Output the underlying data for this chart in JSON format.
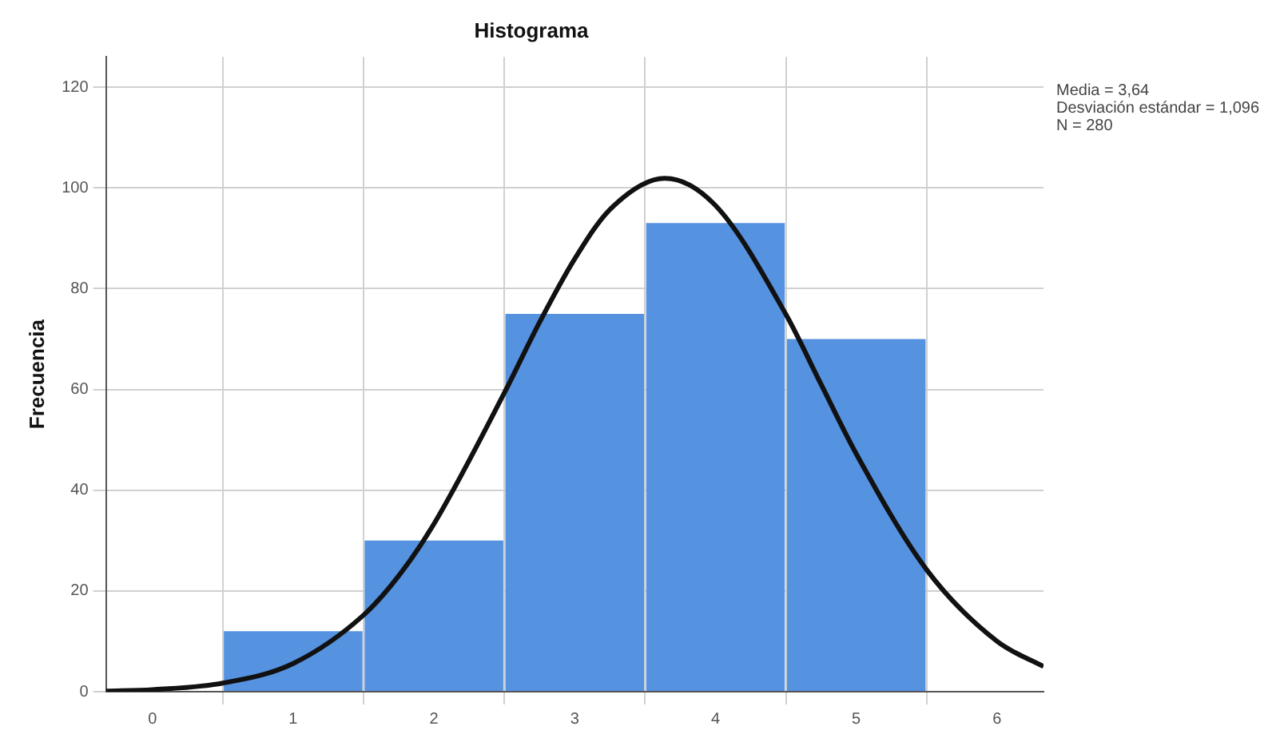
{
  "chart_data": {
    "type": "histogram",
    "title": "Histograma",
    "ylabel": "Frecuencia",
    "bins": [
      0.5,
      1.5,
      2.5,
      3.5,
      4.5,
      5.5
    ],
    "values": [
      12,
      30,
      75,
      93,
      70
    ],
    "color": "#5592e0",
    "series": [
      {
        "type": "line",
        "color": "#111111",
        "x": [
          -0.33,
          0,
          0.5,
          1,
          1.5,
          1.75,
          2,
          2.5,
          2.75,
          3,
          3.25,
          3.64,
          4,
          4.5,
          4.75,
          5,
          5.5,
          6,
          6.33
        ],
        "values": [
          0.1,
          0.4,
          1.7,
          5.6,
          15.2,
          23,
          33.3,
          59.3,
          73.3,
          85.9,
          95.7,
          101.9,
          96.5,
          74.9,
          61,
          47.2,
          24.2,
          10,
          5
        ]
      }
    ],
    "xlim": [
      -0.33,
      6.33
    ],
    "xticks": [
      0,
      1,
      2,
      3,
      4,
      5,
      6
    ],
    "ylim": [
      0,
      126
    ],
    "yticks": [
      0,
      20,
      40,
      60,
      80,
      100,
      120
    ],
    "grid": true,
    "legend": false,
    "marker": "none",
    "annotations": [
      "Media = 3,64",
      "Desviación estándar = 1,096",
      "N = 280"
    ]
  }
}
